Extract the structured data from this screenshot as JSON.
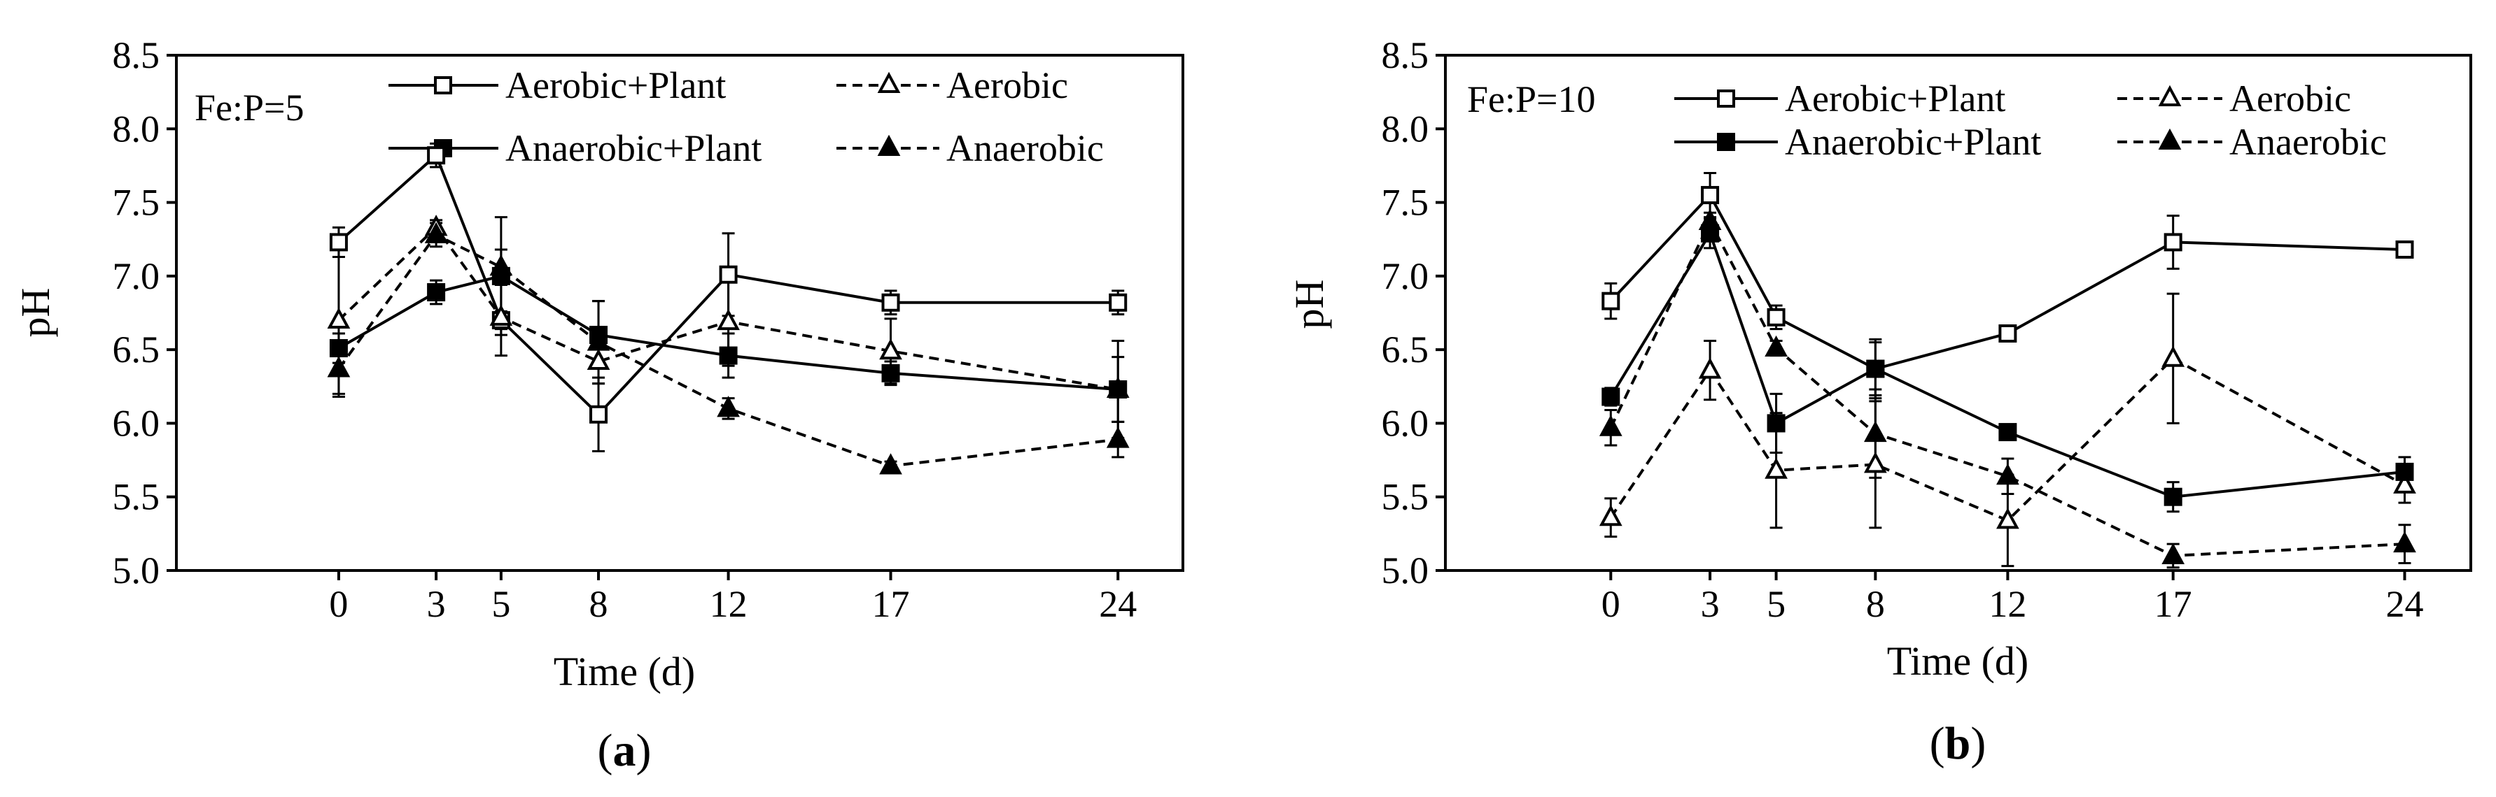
{
  "figure": {
    "panel_labels": [
      {
        "open": "(",
        "letter": "a",
        "close": ")"
      },
      {
        "open": "(",
        "letter": "b",
        "close": ")"
      }
    ]
  },
  "chart_data": [
    {
      "type": "line",
      "annotation": "Fe:P=5",
      "xlabel": "Time (d)",
      "ylabel": "pH",
      "x": [
        0,
        3,
        5,
        8,
        12,
        17,
        24
      ],
      "x_tick_labels": [
        "0",
        "3",
        "5",
        "8",
        "12",
        "17",
        "24"
      ],
      "xlim": [
        -5,
        26
      ],
      "ylim": [
        5.0,
        8.5
      ],
      "y_ticks": [
        5.0,
        5.5,
        6.0,
        6.5,
        7.0,
        7.5,
        8.0,
        8.5
      ],
      "y_tick_labels": [
        "5.0",
        "5.5",
        "6.0",
        "6.5",
        "7.0",
        "7.5",
        "8.0",
        "8.5"
      ],
      "series": [
        {
          "name": "Aerobic+Plant",
          "line": "solid",
          "marker": "square-open",
          "values": [
            7.23,
            7.82,
            6.7,
            6.06,
            7.01,
            6.82,
            6.82
          ],
          "errors": [
            0.1,
            0.08,
            0.06,
            0.25,
            0.28,
            0.08,
            0.08
          ]
        },
        {
          "name": "Aerobic",
          "line": "dashed",
          "marker": "triangle-open",
          "values": [
            6.7,
            7.33,
            6.72,
            6.42,
            6.69,
            6.49,
            6.23
          ],
          "errors": [
            0.52,
            0.05,
            0.26,
            0.15,
            0.3,
            0.22,
            0.22
          ]
        },
        {
          "name": "Anaerobic+Plant",
          "line": "solid",
          "marker": "square-filled",
          "values": [
            6.51,
            6.89,
            7.0,
            6.6,
            6.46,
            6.34,
            6.23
          ],
          "errors": [
            0.1,
            0.08,
            0.4,
            0.23,
            0.15,
            0.08,
            0.33
          ]
        },
        {
          "name": "Anaerobic",
          "line": "dashed",
          "marker": "triangle-filled",
          "values": [
            6.37,
            7.28,
            7.06,
            6.55,
            6.1,
            5.71,
            5.89
          ],
          "errors": [
            0.17,
            0.08,
            0.12,
            0.28,
            0.07,
            0.03,
            0.12
          ]
        }
      ]
    },
    {
      "type": "line",
      "annotation": "Fe:P=10",
      "xlabel": "Time (d)",
      "ylabel": "pH",
      "x": [
        0,
        3,
        5,
        8,
        12,
        17,
        24
      ],
      "x_tick_labels": [
        "0",
        "3",
        "5",
        "8",
        "12",
        "17",
        "24"
      ],
      "xlim": [
        -5,
        26
      ],
      "ylim": [
        5.0,
        8.5
      ],
      "y_ticks": [
        5.0,
        5.5,
        6.0,
        6.5,
        7.0,
        7.5,
        8.0,
        8.5
      ],
      "y_tick_labels": [
        "5.0",
        "5.5",
        "6.0",
        "6.5",
        "7.0",
        "7.5",
        "8.0",
        "8.5"
      ],
      "series": [
        {
          "name": "Aerobic+Plant",
          "line": "solid",
          "marker": "square-open",
          "values": [
            6.83,
            7.55,
            6.72,
            6.37,
            6.61,
            7.23,
            7.18
          ],
          "errors": [
            0.12,
            0.15,
            0.08,
            0.18,
            0.04,
            0.18,
            0.02
          ]
        },
        {
          "name": "Aerobic",
          "line": "dashed",
          "marker": "triangle-open",
          "values": [
            5.36,
            6.36,
            5.68,
            5.72,
            5.34,
            6.44,
            5.58
          ],
          "errors": [
            0.13,
            0.2,
            0.39,
            0.43,
            0.31,
            0.44,
            0.12
          ]
        },
        {
          "name": "Anaerobic+Plant",
          "line": "solid",
          "marker": "square-filled",
          "values": [
            6.18,
            7.29,
            6.0,
            6.37,
            5.94,
            5.5,
            5.67
          ],
          "errors": [
            0.06,
            0.1,
            0.2,
            0.2,
            0.05,
            0.1,
            0.1
          ]
        },
        {
          "name": "Anaerobic",
          "line": "dashed",
          "marker": "triangle-filled",
          "values": [
            5.97,
            7.37,
            6.51,
            5.93,
            5.64,
            5.1,
            5.18
          ],
          "errors": [
            0.12,
            0.06,
            0.05,
            0.3,
            0.12,
            0.08,
            0.13
          ]
        }
      ]
    }
  ]
}
